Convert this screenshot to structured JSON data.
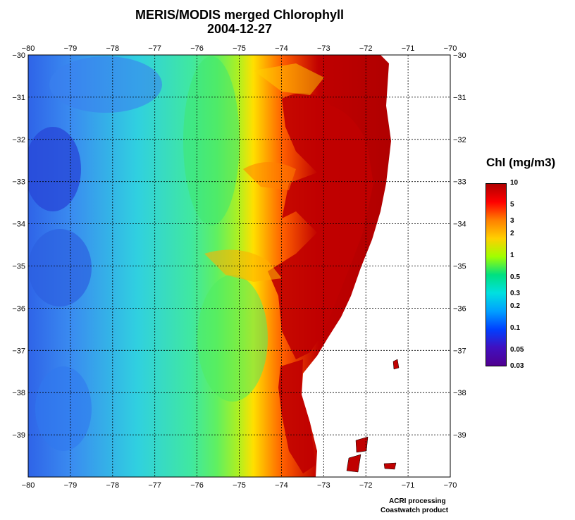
{
  "title": "MERIS/MODIS merged Chlorophyll",
  "date": "2004-12-27",
  "map": {
    "lon_range": [
      -80,
      -70
    ],
    "lat_range": [
      -40,
      -30
    ],
    "lon_ticks": [
      "−80",
      "−79",
      "−78",
      "−77",
      "−76",
      "−75",
      "−74",
      "−73",
      "−72",
      "−71",
      "−70"
    ],
    "lat_ticks": [
      "−30",
      "−31",
      "−32",
      "−33",
      "−34",
      "−35",
      "−36",
      "−37",
      "−38",
      "−39"
    ],
    "grid": "dashed, every 1 degree",
    "land_color": "#ffffff"
  },
  "colorbar": {
    "title": "Chl (mg/m3)",
    "labels": [
      "10",
      "5",
      "3",
      "2",
      "1",
      "0.5",
      "0.3",
      "0.2",
      "0.1",
      "0.05",
      "0.03"
    ],
    "colors": [
      "#b00000",
      "#ff0000",
      "#ff8000",
      "#ffd000",
      "#a0ff00",
      "#00e080",
      "#00e0e0",
      "#00a0ff",
      "#0040ff",
      "#4010c0",
      "#500090"
    ]
  },
  "credits": {
    "line1": "ACRI processing",
    "line2": "Coastwatch product"
  }
}
